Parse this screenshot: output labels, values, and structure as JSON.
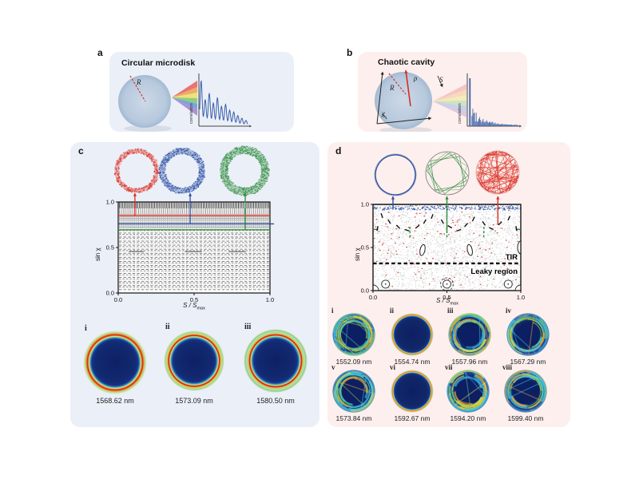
{
  "panel_a": {
    "letter": "a",
    "title": "Circular microdisk",
    "disk_radius_label": "R",
    "correlation_ylabel": "correlation"
  },
  "panel_b": {
    "letter": "b",
    "title": "Chaotic cavity",
    "radius_label": "R",
    "rho_label": "ρ",
    "s_label": "S",
    "chi_label": "χ",
    "correlation_ylabel": "correlation"
  },
  "axes": {
    "ylabel": "sin χ",
    "xlabel_main": "S / S",
    "xlabel_sub": "max"
  },
  "panel_c": {
    "letter": "c",
    "modes": [
      {
        "numeral": "i",
        "wavelength": "1568.62 nm"
      },
      {
        "numeral": "ii",
        "wavelength": "1573.09 nm"
      },
      {
        "numeral": "iii",
        "wavelength": "1580.50 nm"
      }
    ]
  },
  "panel_d": {
    "letter": "d",
    "tir_label": "TIR",
    "leaky_label": "Leaky region",
    "modes": [
      {
        "numeral": "i",
        "wavelength": "1552.09 nm",
        "style": "chaotic"
      },
      {
        "numeral": "ii",
        "wavelength": "1554.74 nm",
        "style": "ring"
      },
      {
        "numeral": "iii",
        "wavelength": "1557.96 nm",
        "style": "chaotic"
      },
      {
        "numeral": "iv",
        "wavelength": "1567.29 nm",
        "style": "chaotic"
      },
      {
        "numeral": "v",
        "wavelength": "1573.84 nm",
        "style": "chaotic"
      },
      {
        "numeral": "vi",
        "wavelength": "1592.67 nm",
        "style": "ring"
      },
      {
        "numeral": "vii",
        "wavelength": "1594.20 nm",
        "style": "chaotic"
      },
      {
        "numeral": "viii",
        "wavelength": "1599.40 nm",
        "style": "chaotic"
      }
    ]
  },
  "colors": {
    "panel_blue_bg": "#ebeff8",
    "panel_pink_bg": "#fcefed",
    "disk_fill": "#b7c9dd",
    "correlation_line": "#3a5fa8",
    "red_mode": "#d92b1f",
    "blue_mode": "#2b4ea2",
    "green_mode": "#2e8b3d",
    "navy_field": "#0e2066"
  },
  "chart_data": [
    {
      "id": "correlation_circular",
      "type": "line",
      "ylabel": "correlation",
      "description": "Autocorrelation of circular microdisk emission: periodic decaying peaks",
      "peak_positions_t": [
        0.03,
        0.115,
        0.2,
        0.285,
        0.37,
        0.455,
        0.54,
        0.625,
        0.71,
        0.795,
        0.88,
        0.965
      ],
      "peak_heights": [
        1.0,
        0.58,
        0.72,
        0.5,
        0.62,
        0.43,
        0.47,
        0.34,
        0.3,
        0.22,
        0.16,
        0.11
      ],
      "color": "#3a5fa8"
    },
    {
      "id": "correlation_chaotic",
      "type": "bar",
      "ylabel": "correlation",
      "description": "Autocorrelation of chaotic cavity emission: single sharp peak then decaying noise",
      "spike": {
        "t": 0.05,
        "height": 1.0
      },
      "noise_decay_rate": 4,
      "noise_scale": 0.22,
      "color": "#3a5fa8"
    },
    {
      "id": "phase_space_circular",
      "type": "scatter",
      "xlabel": "S / Smax",
      "ylabel": "sin χ",
      "xlim": [
        0,
        1
      ],
      "ylim": [
        0,
        1
      ],
      "xticks": [
        "0.0",
        "0.5",
        "1.0"
      ],
      "yticks": [
        "0.0",
        "0.5",
        "1.0"
      ],
      "structure": "horizontal invariant curves of integrable circular billiard",
      "dense_band_sin_chi": [
        0.935,
        1.0
      ],
      "mode_lines": [
        {
          "color": "#d92b1f",
          "sin_chi": 0.85,
          "arrow_x": 0.11
        },
        {
          "color": "#2b4ea2",
          "sin_chi": 0.76,
          "arrow_x": 0.474
        },
        {
          "color": "#2e8b3d",
          "sin_chi": 0.695,
          "arrow_x": 0.837
        }
      ],
      "short_segments_sin_chi": 0.455,
      "short_segments_x": [
        [
          0.07,
          0.17
        ],
        [
          0.44,
          0.55
        ],
        [
          0.73,
          0.84
        ]
      ]
    },
    {
      "id": "phase_space_chaotic",
      "type": "scatter",
      "xlabel": "S / Smax",
      "ylabel": "sin χ",
      "xlim": [
        0,
        1
      ],
      "ylim": [
        0,
        1
      ],
      "xticks": [
        "0.0",
        "0.5",
        "1.0"
      ],
      "yticks": [
        "0.0",
        "0.5",
        "1.0"
      ],
      "structure": "chaotic sea with stable islands",
      "tir_line_sin_chi": 0.315,
      "tir_label": "TIR",
      "leaky_label": "Leaky region",
      "blue_band_sin_chi": 0.95,
      "arrows": [
        {
          "color": "#2b4ea2",
          "x": 0.135,
          "sin_chi": 0.94
        },
        {
          "color": "#2e8b3d",
          "x": 0.5,
          "sin_chi": 0.67
        },
        {
          "color": "#d92b1f",
          "x": 0.845,
          "sin_chi": 0.76
        }
      ],
      "islands_bottom_x": [
        0.085,
        0.5,
        0.915
      ],
      "oval_islands": [
        [
          0.335,
          0.47
        ],
        [
          0.655,
          0.47
        ]
      ],
      "gray_points": 2800,
      "red_points": 120
    }
  ]
}
